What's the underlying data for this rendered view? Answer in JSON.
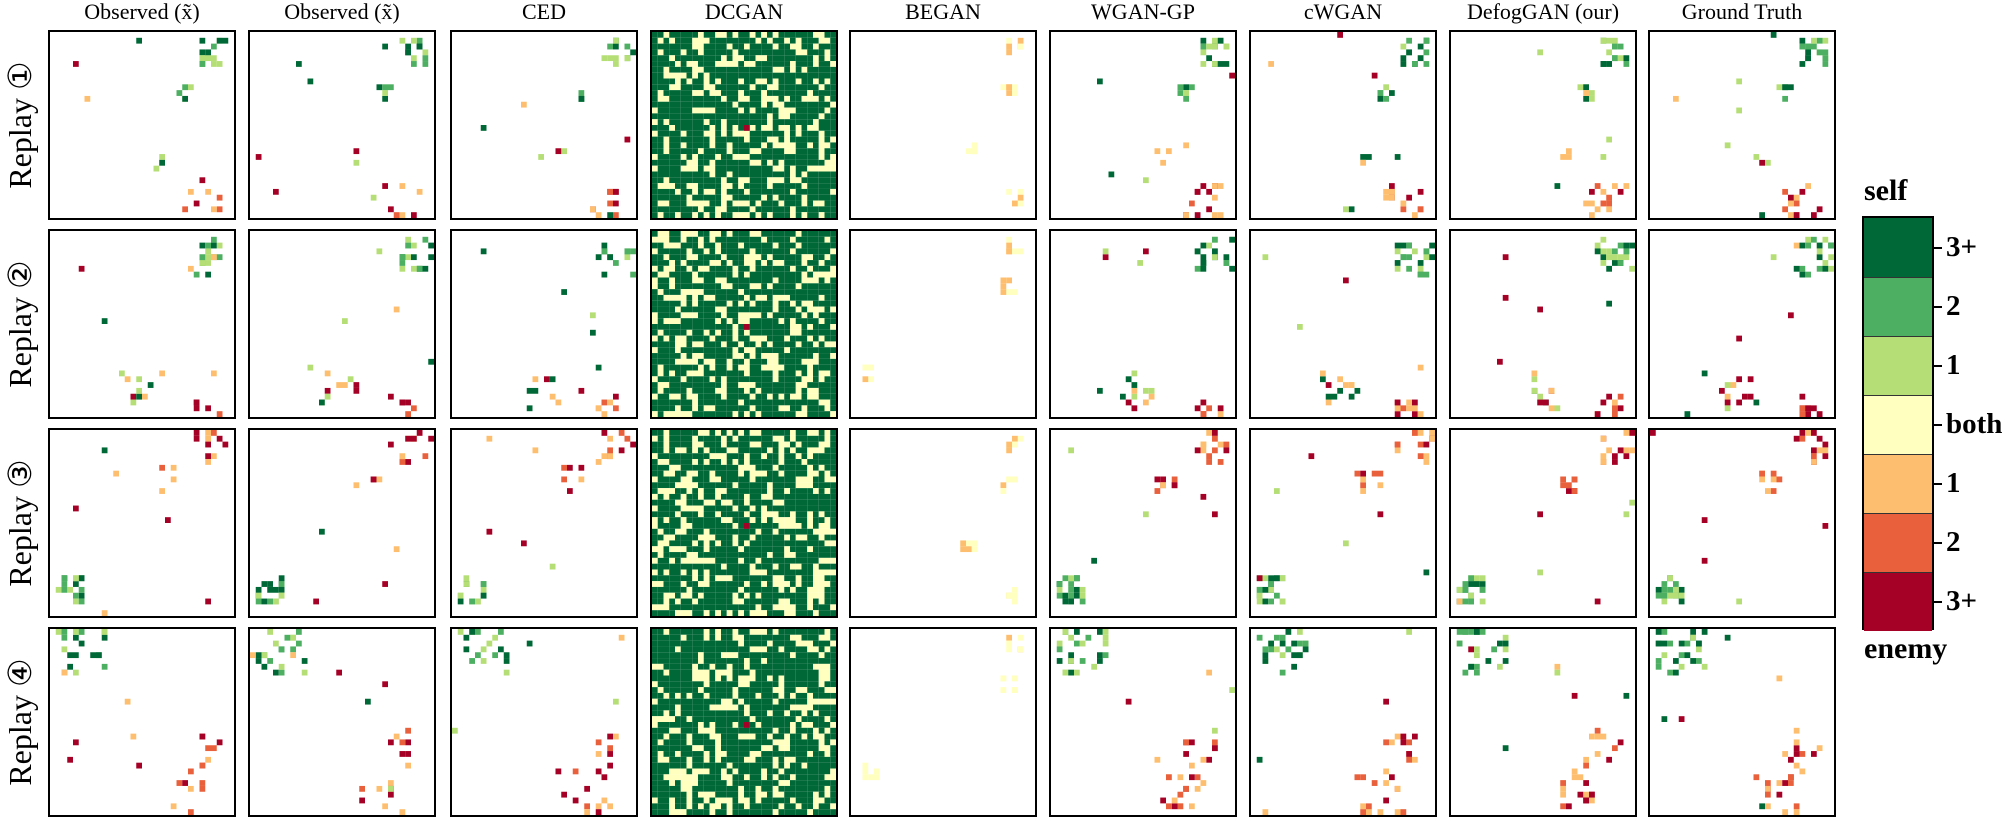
{
  "figure": {
    "columns": [
      "Observed (x̃)",
      "Observed (x̃)",
      "CED",
      "DCGAN",
      "BEGAN",
      "WGAN-GP",
      "cWGAN",
      "DefogGAN (our)",
      "Ground Truth"
    ],
    "rows": [
      "Replay ①",
      "Replay ②",
      "Replay ③",
      "Replay ④"
    ]
  },
  "legend": {
    "top_title": "self",
    "bottom_title": "enemy",
    "items": [
      {
        "label": "3+",
        "color": "#006837"
      },
      {
        "label": "2",
        "color": "#4daf62"
      },
      {
        "label": "1",
        "color": "#b5df76"
      },
      {
        "label": "both",
        "color": "#ffffbf"
      },
      {
        "label": "1",
        "color": "#fdbf6f"
      },
      {
        "label": "2",
        "color": "#e8603c"
      },
      {
        "label": "3+",
        "color": "#a50026"
      }
    ]
  }
}
